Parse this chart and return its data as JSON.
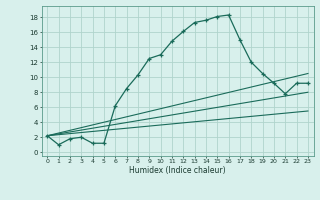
{
  "xlabel": "Humidex (Indice chaleur)",
  "bg_color": "#d8f0ec",
  "grid_color": "#b0d4cc",
  "line_color": "#1a6b5a",
  "xticks": [
    0,
    1,
    2,
    3,
    4,
    5,
    6,
    7,
    8,
    9,
    10,
    11,
    12,
    13,
    14,
    15,
    16,
    17,
    18,
    19,
    20,
    21,
    22,
    23
  ],
  "yticks": [
    0,
    2,
    4,
    6,
    8,
    10,
    12,
    14,
    16,
    18
  ],
  "xlim": [
    -0.5,
    23.5
  ],
  "ylim": [
    -0.5,
    19.5
  ],
  "main_x": [
    0,
    1,
    2,
    3,
    4,
    5,
    6,
    7,
    8,
    9,
    10,
    11,
    12,
    13,
    14,
    15,
    16,
    17,
    18,
    19,
    20,
    21,
    22,
    23
  ],
  "main_y": [
    2.2,
    1.0,
    1.8,
    2.0,
    1.2,
    1.2,
    6.2,
    8.5,
    10.3,
    12.5,
    13.0,
    14.8,
    16.1,
    17.3,
    17.6,
    18.1,
    18.3,
    15.0,
    12.0,
    10.5,
    9.2,
    7.8,
    9.2,
    9.2
  ],
  "line1_x": [
    0,
    23
  ],
  "line1_y": [
    2.2,
    10.5
  ],
  "line2_x": [
    0,
    23
  ],
  "line2_y": [
    2.2,
    8.0
  ],
  "line3_x": [
    0,
    23
  ],
  "line3_y": [
    2.2,
    5.5
  ]
}
